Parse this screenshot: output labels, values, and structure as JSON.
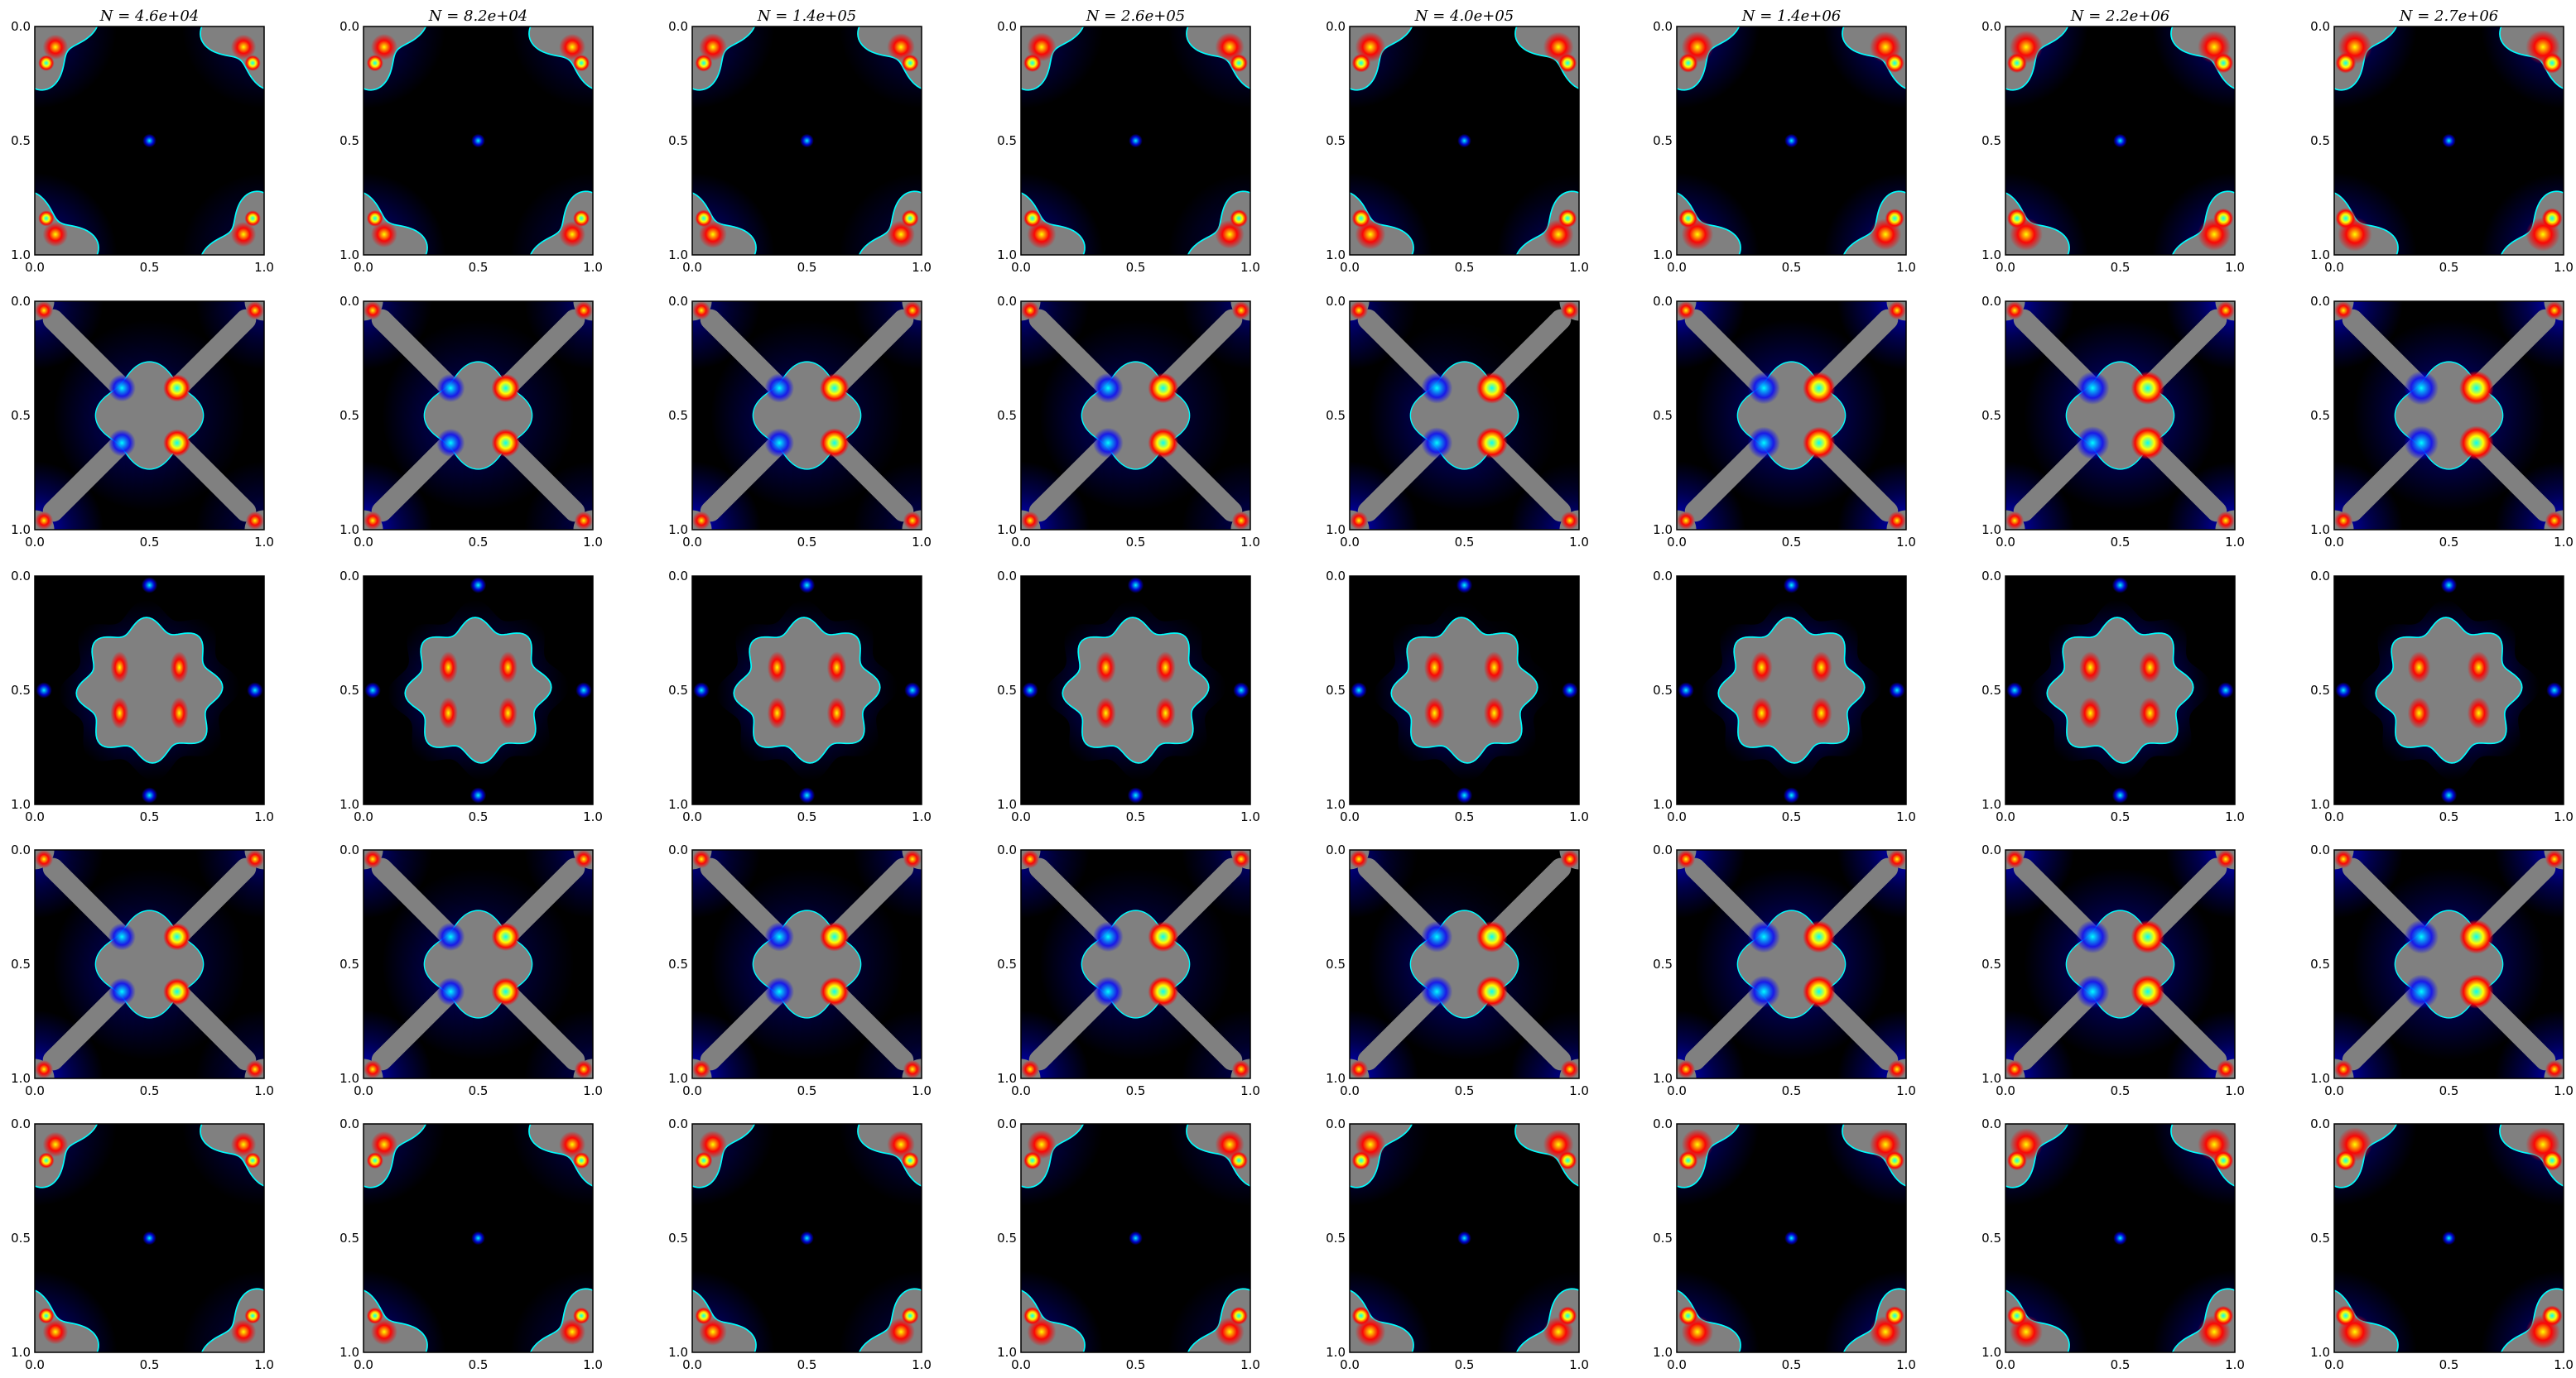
{
  "chart_data": {
    "type": "heatmap",
    "layout": {
      "rows": 5,
      "columns": 8
    },
    "column_titles": [
      "N = 4.6e+04",
      "N = 8.2e+04",
      "N = 1.4e+05",
      "N = 2.6e+05",
      "N = 4.0e+05",
      "N = 1.4e+06",
      "N = 2.2e+06",
      "N = 2.7e+06"
    ],
    "N_values": [
      46000,
      82000,
      140000,
      260000,
      400000,
      1400000,
      2200000,
      2700000
    ],
    "x_axis": {
      "range": [
        0.0,
        1.0
      ],
      "ticks": [
        "0.0",
        "0.5",
        "1.0"
      ]
    },
    "y_axis": {
      "range": [
        1.0,
        0.0
      ],
      "inverted": true,
      "ticks": [
        "0.0",
        "0.5",
        "1.0"
      ]
    },
    "colormap": "jet",
    "background_color": "#000000",
    "masked_region_color": "#808080",
    "row_patterns": [
      "corner-lobes",
      "cross-arms",
      "center-star",
      "cross-arms",
      "corner-lobes"
    ],
    "grid": false
  },
  "colors": {
    "masked": "#808080",
    "background": "#000000",
    "jet_low": "#00007f",
    "jet_blue": "#0000ff",
    "jet_cyan": "#00ffff",
    "jet_yellow": "#ffff00",
    "jet_red": "#ff0000"
  }
}
